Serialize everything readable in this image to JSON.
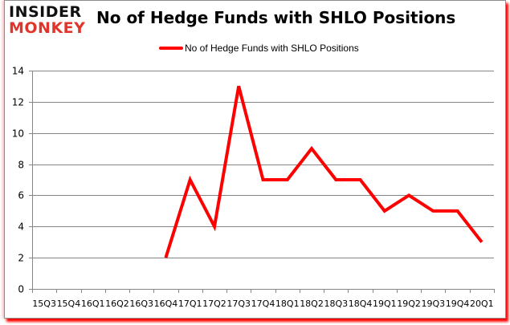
{
  "brand": {
    "top": "INSIDER",
    "bottom": "MONKEY"
  },
  "colors": {
    "series": "#ff0000",
    "grid": "#868686",
    "logo_red": "#e0352a",
    "shadow": "#ff0000"
  },
  "chart_data": {
    "type": "line",
    "title": "No of Hedge Funds with SHLO Positions",
    "xlabel": "",
    "ylabel": "",
    "ylim": [
      0,
      14
    ],
    "yticks": [
      0,
      2,
      4,
      6,
      8,
      10,
      12,
      14
    ],
    "grid": true,
    "legend_position": "top",
    "categories": [
      "15Q3",
      "15Q4",
      "16Q1",
      "16Q2",
      "16Q3",
      "16Q4",
      "17Q1",
      "17Q2",
      "17Q3",
      "17Q4",
      "18Q1",
      "18Q2",
      "18Q3",
      "18Q4",
      "19Q1",
      "19Q2",
      "19Q3",
      "19Q4",
      "20Q1"
    ],
    "series": [
      {
        "name": "No of Hedge Funds with SHLO Positions",
        "color": "#ff0000",
        "values": [
          null,
          null,
          null,
          null,
          null,
          2,
          7,
          4,
          13,
          7,
          7,
          9,
          7,
          7,
          5,
          6,
          5,
          5,
          3
        ]
      }
    ]
  }
}
